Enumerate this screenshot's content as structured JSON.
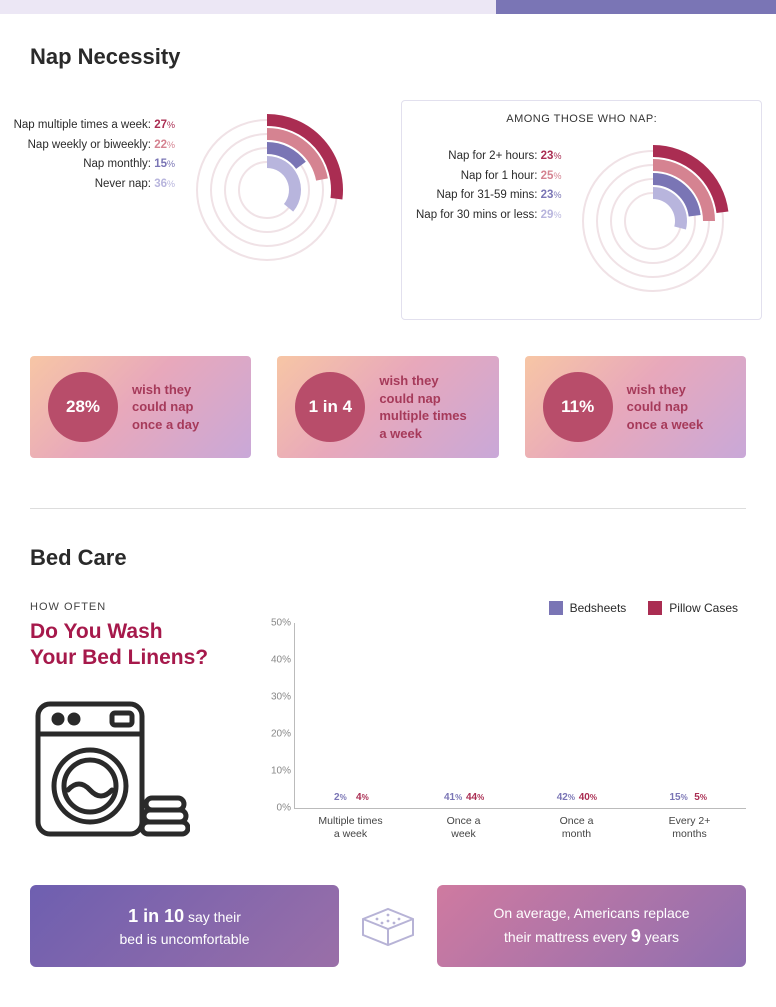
{
  "colors": {
    "maroon": "#aa2d52",
    "rose": "#d58391",
    "purple": "#7a75b5",
    "lilac": "#b8b5dd",
    "track": "#f0e2e6",
    "bedsheets": "#7a75b5",
    "pillowcases": "#aa2d52",
    "bedsheets_shade": "#b8b5dd",
    "pillowcases_shade": "#d99aa8"
  },
  "nap": {
    "title": "Nap Necessity",
    "chart_left": {
      "items": [
        {
          "label": "Nap multiple times a week",
          "value": 27,
          "color": "#aa2d52"
        },
        {
          "label": "Nap weekly or biweekly",
          "value": 22,
          "color": "#d58391"
        },
        {
          "label": "Nap monthly",
          "value": 15,
          "color": "#7a75b5"
        },
        {
          "label": "Never nap",
          "value": 36,
          "color": "#b8b5dd"
        }
      ]
    },
    "chart_right": {
      "heading": "AMONG THOSE WHO NAP:",
      "items": [
        {
          "label": "Nap for 2+ hours",
          "value": 23,
          "color": "#aa2d52"
        },
        {
          "label": "Nap for 1 hour",
          "value": 25,
          "color": "#d58391"
        },
        {
          "label": "Nap for 31-59 mins",
          "value": 23,
          "color": "#7a75b5"
        },
        {
          "label": "Nap for 30 mins or less",
          "value": 29,
          "color": "#b8b5dd"
        }
      ]
    },
    "cards": [
      {
        "stat": "28%",
        "text": "wish they\ncould nap\nonce a day"
      },
      {
        "stat": "1 in 4",
        "text": "wish they\ncould nap\nmultiple times\na week"
      },
      {
        "stat": "11%",
        "text": "wish they\ncould nap\nonce a week"
      }
    ]
  },
  "bedcare": {
    "title": "Bed Care",
    "subhead": "HOW OFTEN",
    "question": "Do You Wash\nYour Bed Linens?",
    "legend": [
      {
        "label": "Bedsheets",
        "color": "#7a75b5"
      },
      {
        "label": "Pillow Cases",
        "color": "#aa2d52"
      }
    ],
    "chart": {
      "ymax": 50,
      "ytick_step": 10,
      "categories": [
        "Multiple times\na week",
        "Once a\nweek",
        "Once a\nmonth",
        "Every 2+\nmonths"
      ],
      "series": {
        "bedsheets": [
          2,
          41,
          42,
          15
        ],
        "pillowcases": [
          4,
          44,
          40,
          5
        ]
      }
    },
    "banners": {
      "left": {
        "big": "1 in 10",
        "rest1": " say their",
        "rest2": "bed is uncomfortable"
      },
      "right": {
        "line1": "On average, Americans replace",
        "line2a": "their mattress every ",
        "big": "9",
        "line2b": " years"
      }
    }
  }
}
